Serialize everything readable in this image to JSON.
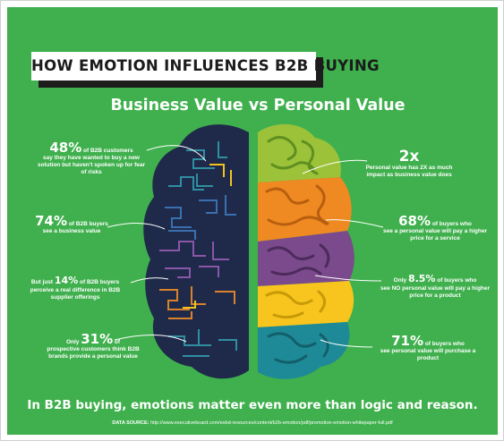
{
  "title": "HOW EMOTION INFLUENCES B2B BUYING",
  "subtitle": "Business Value vs Personal Value",
  "left_stats": [
    {
      "number": "48%",
      "text_inline": "of B2B customers",
      "text_rest": "say they have wanted to buy a new solution but haven't spoken up for fear of risks"
    },
    {
      "number": "74%",
      "text_inline": "of B2B buyers",
      "text_rest": "see a business value"
    },
    {
      "prefix": "But just",
      "number": "14%",
      "text_inline": "of B2B buyers",
      "text_rest": "perceive a real difference in B2B supplier offerings"
    },
    {
      "prefix": "Only",
      "number": "31%",
      "text_inline": "of",
      "text_rest": "prospective customers think B2B brands provide a personal value"
    }
  ],
  "right_stats": [
    {
      "number": "2x",
      "text_rest": "Personal value has 2X as much impact as business value does"
    },
    {
      "number": "68%",
      "text_inline": "of buyers who",
      "text_rest": "see a personal value will pay a higher price for a service"
    },
    {
      "prefix": "Only",
      "number": "8.5%",
      "text_inline": "of buyers who",
      "text_rest": "see NO personal value will pay a higher price for a product"
    },
    {
      "number": "71%",
      "text_inline": "of buyers who",
      "text_rest": "see personal value will purchase a product"
    }
  ],
  "bottom_prefix": "In B2B buying,",
  "bottom_rest": "emotions matter even more than logic and reason.",
  "source_label": "DATA SOURCE:",
  "source_url": "http://www.executiveboard.com/exbd-resources/content/b2b-emotion/pdf/promotion-emotion-whitepaper-full.pdf",
  "colors": {
    "background": "#3fb04d",
    "left_brain": "#1f2a4a",
    "right_green": "#9cc23a",
    "right_orange": "#ee8a21",
    "right_purple": "#7b4a8c",
    "right_yellow": "#f7c51e",
    "right_teal": "#1f8a97"
  }
}
